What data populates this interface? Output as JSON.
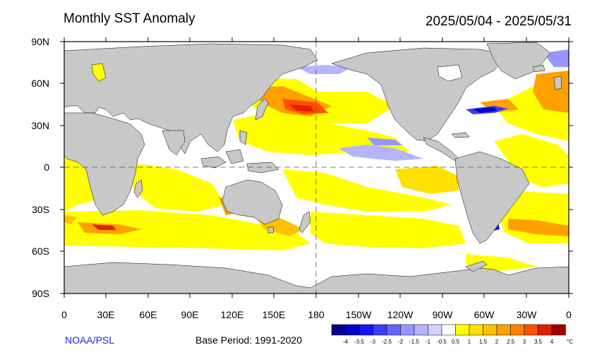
{
  "header": {
    "title": "Monthly SST Anomaly",
    "date_range": "2025/05/04 - 2025/05/31"
  },
  "map": {
    "lat_labels": [
      "90N",
      "60N",
      "30N",
      "0",
      "30S",
      "60S",
      "90S"
    ],
    "lon_labels": [
      "0",
      "30E",
      "60E",
      "90E",
      "120E",
      "150E",
      "180",
      "150W",
      "120W",
      "90W",
      "60W",
      "30W",
      "0"
    ],
    "land_color": "#c8c8c8",
    "ocean_color": "#ffffff"
  },
  "legend": {
    "ticks": [
      "-4",
      "-3.5",
      "-3",
      "-2.5",
      "-2",
      "-1.5",
      "-1",
      "-0.5",
      "0.5",
      "1",
      "1.5",
      "2",
      "2.5",
      "3",
      "3.5",
      "4"
    ],
    "colors": [
      "#00008c",
      "#0000c8",
      "#1414ff",
      "#3c3cff",
      "#6464ff",
      "#9696ff",
      "#b4b4ff",
      "#d2d2ff",
      "#ffffff",
      "#ffff00",
      "#ffe000",
      "#ffc000",
      "#ffa000",
      "#ff8000",
      "#ff5000",
      "#e02000",
      "#a00000"
    ],
    "unit": "°C"
  },
  "footer": {
    "credit": "NOAA/PSL",
    "base_period": "Base Period: 1991-2020"
  }
}
